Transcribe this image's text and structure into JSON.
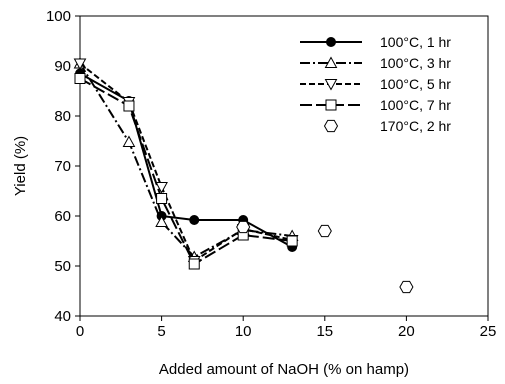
{
  "chart_data": {
    "type": "scatter",
    "xlabel": "Added amount of NaOH (% on hamp)",
    "ylabel": "Yield (%)",
    "xlim": [
      0,
      25
    ],
    "ylim": [
      40,
      100
    ],
    "xticks": [
      "0",
      "5",
      "10",
      "15",
      "20",
      "25"
    ],
    "yticks": [
      "40",
      "50",
      "60",
      "70",
      "80",
      "90",
      "100"
    ],
    "grid": false,
    "legend_position": "top-right",
    "series": [
      {
        "name": "100°C, 1 hr",
        "marker": "circle-filled",
        "line": "solid",
        "x": [
          0,
          3,
          5,
          7,
          10,
          13
        ],
        "y": [
          88.5,
          83,
          60,
          59.2,
          59.2,
          53.8
        ]
      },
      {
        "name": "100°C, 3 hr",
        "marker": "triangle-up-open",
        "line": "dash-dot",
        "x": [
          0,
          3,
          5,
          7,
          10,
          13
        ],
        "y": [
          90.5,
          74.8,
          58.8,
          51.8,
          57.2,
          56
        ]
      },
      {
        "name": "100°C, 5 hr",
        "marker": "triangle-down-open",
        "line": "short-dash",
        "x": [
          0,
          3,
          5,
          7,
          10,
          13
        ],
        "y": [
          90.5,
          82.8,
          65.8,
          51,
          57.4,
          55.2
        ]
      },
      {
        "name": "100°C, 7 hr",
        "marker": "square-open",
        "line": "long-dash",
        "x": [
          0,
          3,
          5,
          7,
          10,
          13
        ],
        "y": [
          87.5,
          82,
          63.5,
          50.4,
          56.2,
          55
        ]
      },
      {
        "name": "170°C, 2 hr",
        "marker": "hexagon-open",
        "line": "none",
        "x": [
          10,
          15,
          20
        ],
        "y": [
          57.8,
          57,
          45.8
        ]
      }
    ]
  }
}
